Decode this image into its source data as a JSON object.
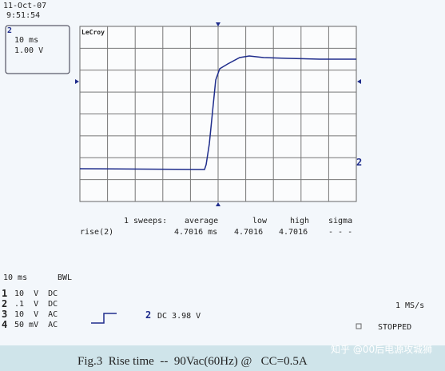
{
  "header": {
    "date": "11-Oct-07",
    "time": "9:51:54"
  },
  "channel_box": {
    "channel": "2",
    "timebase": "10 ms",
    "volts": "1.00 V"
  },
  "brand": "LeCroy",
  "trace_marker": "2",
  "measure": {
    "sweeps": "1 sweeps:",
    "columns": [
      "average",
      "low",
      "high",
      "sigma"
    ],
    "param": "rise(2)",
    "values": [
      "4.7016 ms",
      "4.7016",
      "4.7016",
      "- - -"
    ]
  },
  "status": {
    "timebase": "10 ms",
    "bwl": "BWL",
    "channels": [
      [
        "1",
        "10  V  DC"
      ],
      [
        "2",
        ".1  V  DC"
      ],
      [
        "3",
        "10  V  AC"
      ],
      [
        "4",
        "50 mV  AC"
      ]
    ],
    "trigger_channel": "2",
    "trigger": "DC 3.98 V",
    "rate": "1 MS/s",
    "state": "STOPPED"
  },
  "caption": "Fig.3  Rise time  --  90Vac(60Hz) @   CC=0.5A",
  "watermark": "知乎 @00后电源攻城狮"
}
